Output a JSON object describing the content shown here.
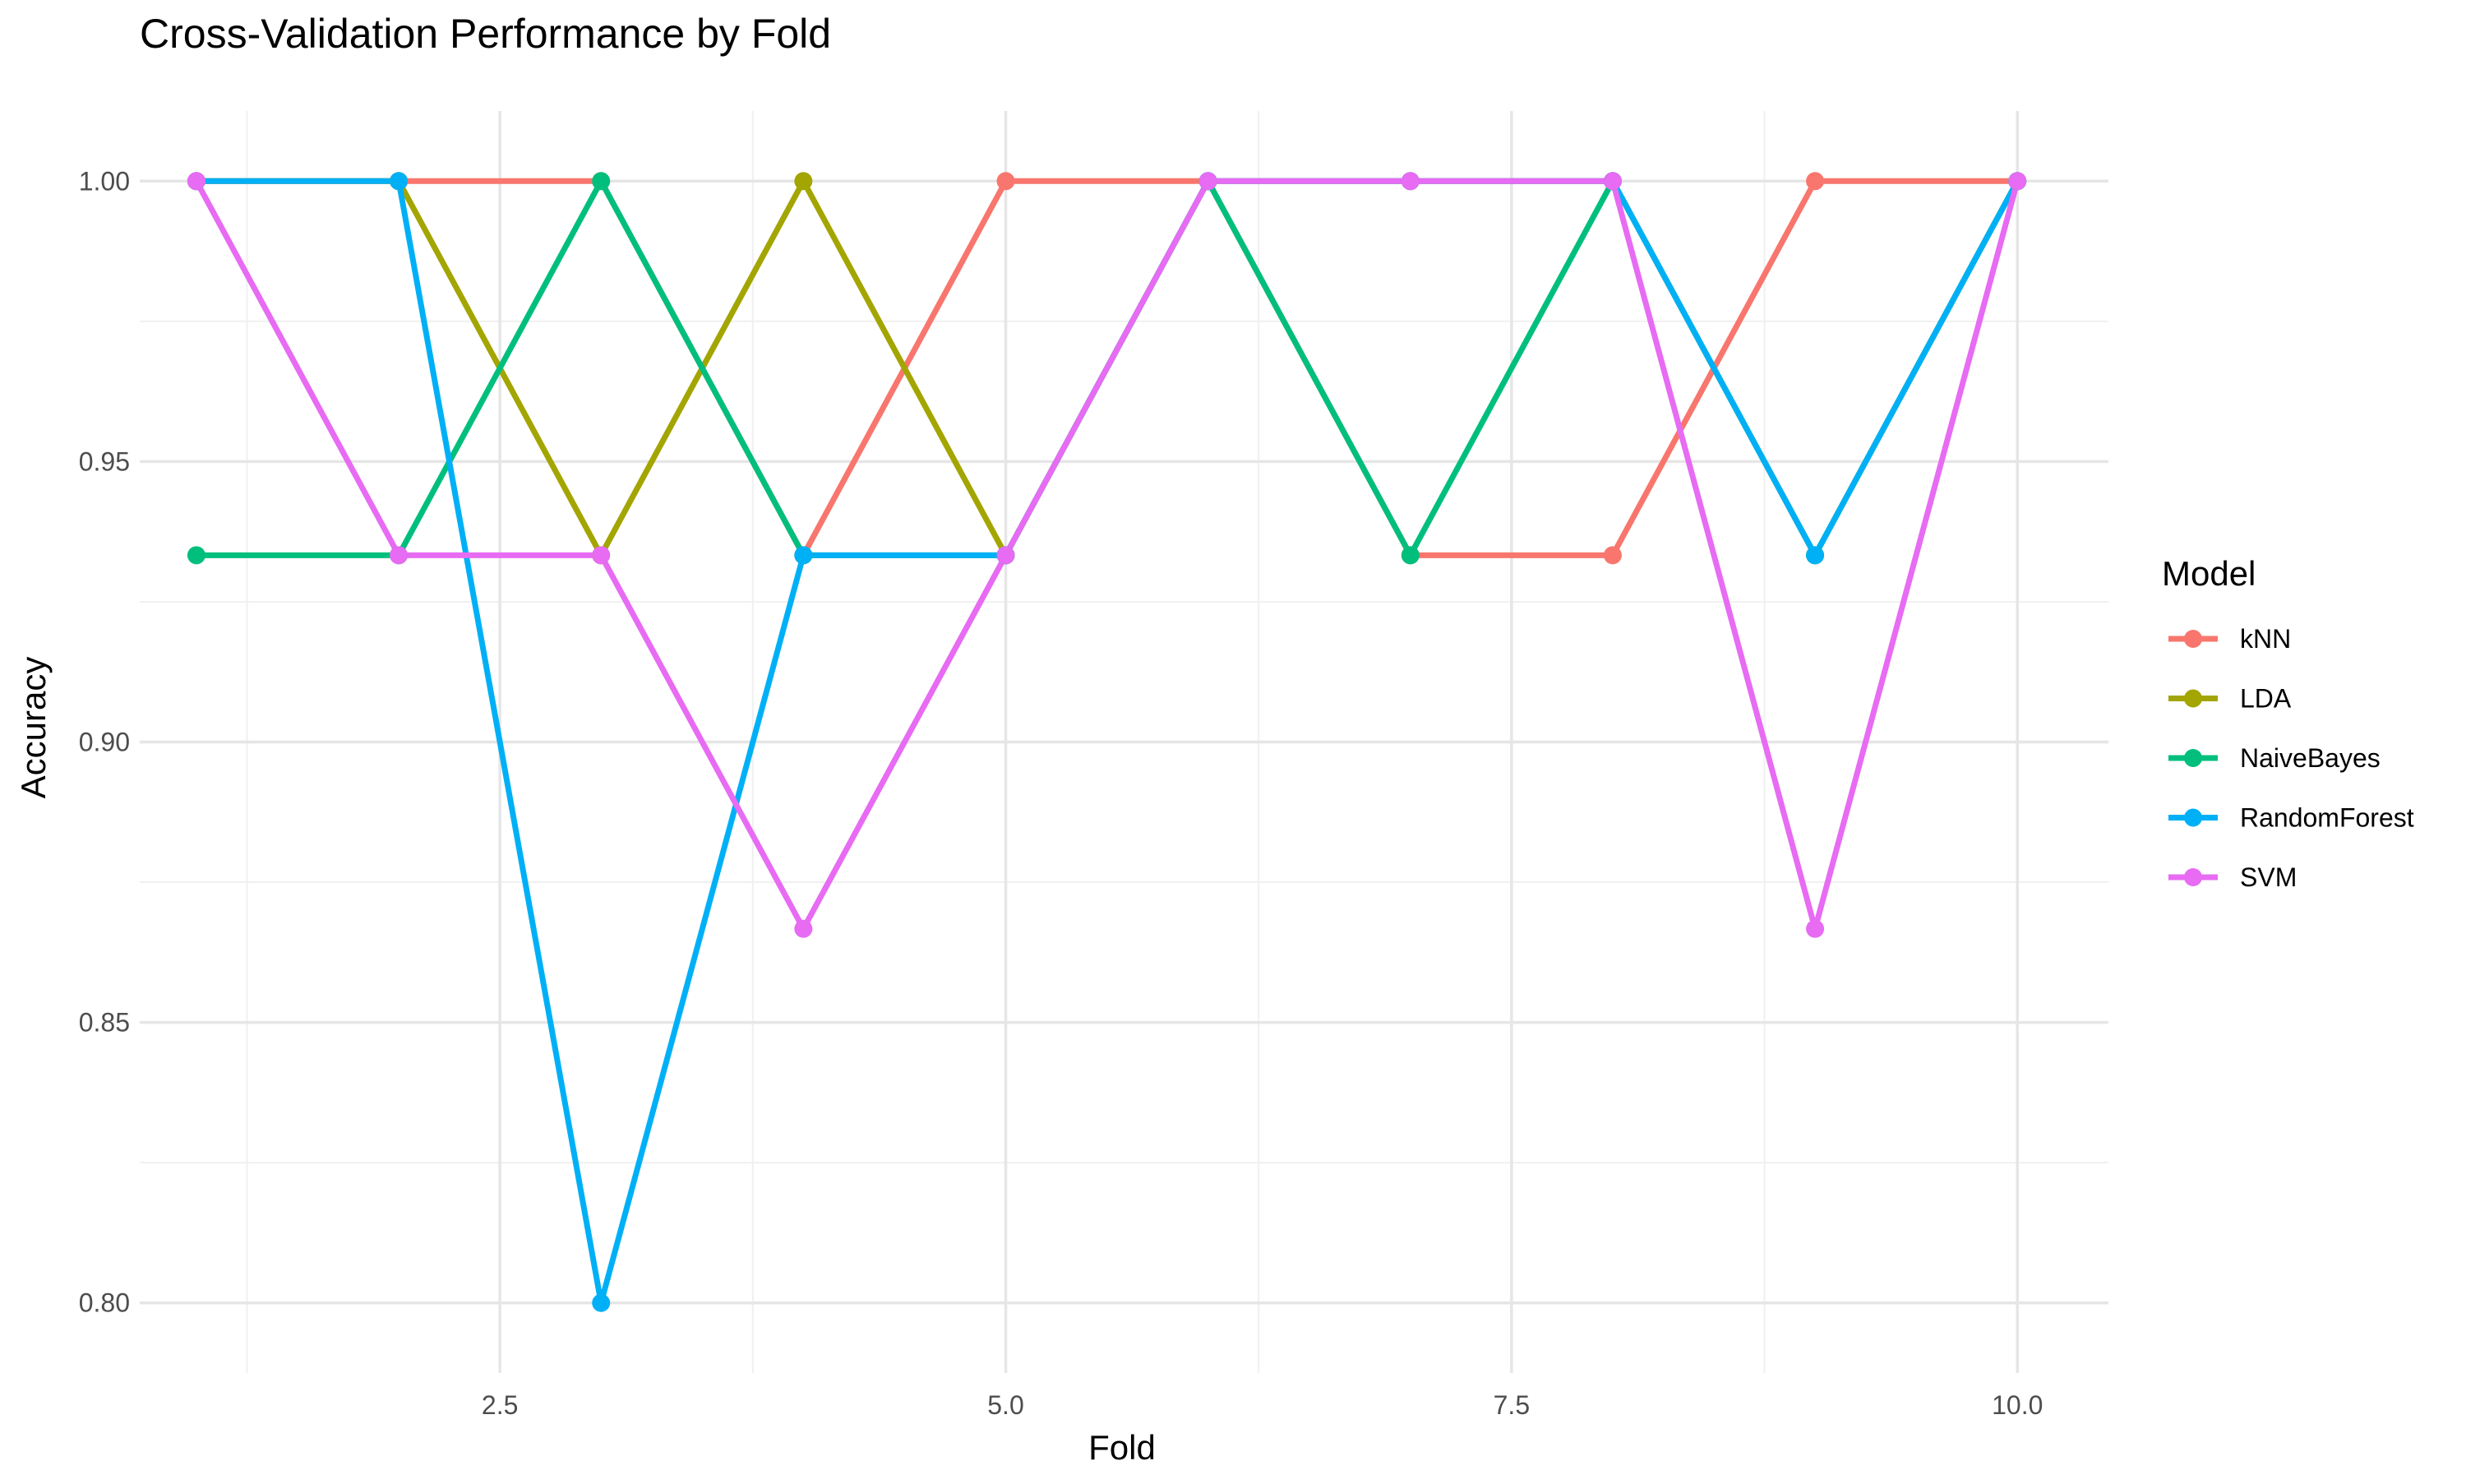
{
  "chart_data": {
    "type": "line",
    "title": "Cross-Validation Performance by Fold",
    "xlabel": "Fold",
    "ylabel": "Accuracy",
    "xlim": [
      0.72,
      10.45
    ],
    "ylim": [
      0.7875,
      1.0125
    ],
    "x_ticks": [
      2.5,
      5.0,
      7.5,
      10.0
    ],
    "x_tick_labels": [
      "2.5",
      "5.0",
      "7.5",
      "10.0"
    ],
    "y_ticks": [
      0.8,
      0.85,
      0.9,
      0.95,
      1.0
    ],
    "y_tick_labels": [
      "0.80",
      "0.85",
      "0.90",
      "0.95",
      "1.00"
    ],
    "grid": true,
    "legend_title": "Model",
    "legend_position": "right",
    "x": [
      1,
      2,
      3,
      4,
      5,
      6,
      7,
      8,
      9,
      10
    ],
    "series": [
      {
        "name": "kNN",
        "color": "#F8766D",
        "values": [
          1.0,
          1.0,
          1.0,
          0.9333,
          1.0,
          1.0,
          0.9333,
          0.9333,
          1.0,
          1.0
        ]
      },
      {
        "name": "LDA",
        "color": "#A3A500",
        "values": [
          1.0,
          1.0,
          0.9333,
          1.0,
          0.9333,
          1.0,
          1.0,
          1.0,
          0.9333,
          1.0
        ]
      },
      {
        "name": "NaiveBayes",
        "color": "#00BF7D",
        "values": [
          0.9333,
          0.9333,
          1.0,
          0.9333,
          0.9333,
          1.0,
          0.9333,
          1.0,
          0.9333,
          1.0
        ]
      },
      {
        "name": "RandomForest",
        "color": "#00B0F6",
        "values": [
          1.0,
          1.0,
          0.8,
          0.9333,
          0.9333,
          1.0,
          1.0,
          1.0,
          0.9333,
          1.0
        ]
      },
      {
        "name": "SVM",
        "color": "#E76BF3",
        "values": [
          1.0,
          0.9333,
          0.9333,
          0.8667,
          0.9333,
          1.0,
          1.0,
          1.0,
          0.8667,
          1.0
        ]
      }
    ]
  }
}
